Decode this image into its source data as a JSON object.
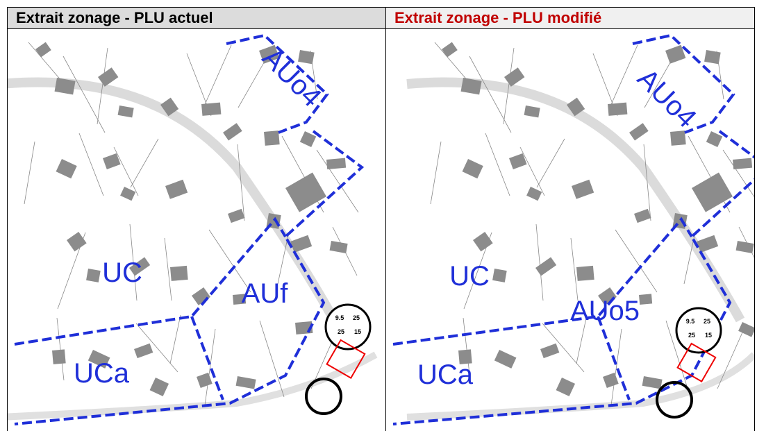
{
  "panels": [
    {
      "title": "Extrait zonage  - PLU actuel",
      "zones": [
        "AUo4",
        "UC",
        "AUf",
        "UCa"
      ],
      "grid_labels": [
        "9.5",
        "25",
        "25",
        "15"
      ]
    },
    {
      "title": "Extrait zonage  - PLU modifié",
      "zones": [
        "AUo4",
        "UC",
        "AUo5",
        "UCa"
      ],
      "grid_labels": [
        "9.5",
        "25",
        "25",
        "15"
      ]
    }
  ]
}
